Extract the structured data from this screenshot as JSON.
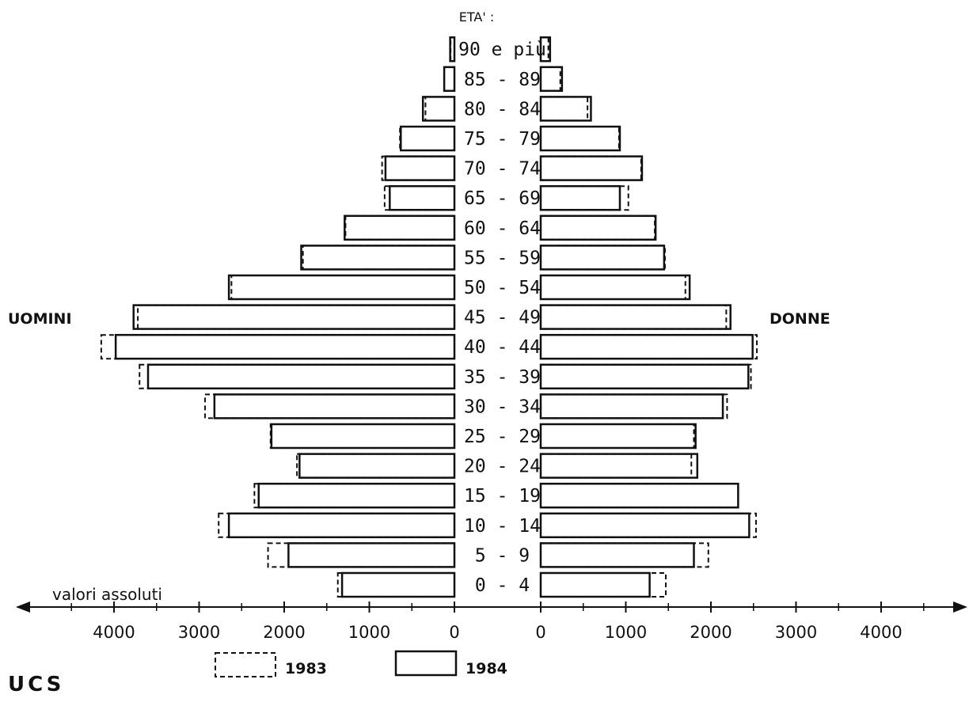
{
  "chart_data": {
    "type": "bar",
    "subtype": "population-pyramid",
    "title": "ETA' :",
    "age_groups": [
      "0-4",
      "5-9",
      "10-14",
      "15-19",
      "20-24",
      "25-29",
      "30-34",
      "35-39",
      "40-44",
      "45-49",
      "50-54",
      "55-59",
      "60-64",
      "65-69",
      "70-74",
      "75-79",
      "80-84",
      "85-89",
      "90 e più"
    ],
    "age_labels": [
      "0 - 4",
      "5 - 9",
      "10 - 14",
      "15 - 19",
      "20 - 24",
      "25 - 29",
      "30 - 34",
      "35 - 39",
      "40 - 44",
      "45 - 49",
      "50 - 54",
      "55 - 59",
      "60 - 64",
      "65 - 69",
      "70 - 74",
      "75 - 79",
      "80 - 84",
      "85 - 89",
      "90 e più"
    ],
    "left_label": "UOMINI",
    "right_label": "DONNE",
    "axis_caption": "valori assoluti",
    "xlim": [
      0,
      4500
    ],
    "left_ticks": [
      "4000",
      "3000",
      "2000",
      "1000",
      "0"
    ],
    "left_tick_values": [
      4000,
      3000,
      2000,
      1000,
      0
    ],
    "right_ticks": [
      "0",
      "1000",
      "2000",
      "3000",
      "4000"
    ],
    "right_tick_values": [
      0,
      1000,
      2000,
      3000,
      4000
    ],
    "series": [
      {
        "name": "1983",
        "style": "dashed",
        "men": [
          1370,
          2190,
          2770,
          2350,
          1850,
          2160,
          2930,
          3700,
          4150,
          3720,
          2620,
          1780,
          1280,
          820,
          850,
          640,
          340,
          120,
          45
        ],
        "women": [
          1470,
          1970,
          2530,
          2320,
          1770,
          1800,
          2190,
          2470,
          2540,
          2180,
          1700,
          1460,
          1340,
          1030,
          1180,
          920,
          550,
          230,
          90
        ]
      },
      {
        "name": "1984",
        "style": "solid",
        "men": [
          1320,
          1950,
          2650,
          2300,
          1820,
          2150,
          2820,
          3600,
          3980,
          3770,
          2650,
          1800,
          1290,
          760,
          810,
          630,
          370,
          120,
          50
        ],
        "women": [
          1280,
          1800,
          2450,
          2320,
          1840,
          1820,
          2140,
          2440,
          2490,
          2230,
          1750,
          1450,
          1350,
          930,
          1190,
          930,
          590,
          250,
          110
        ]
      }
    ],
    "legend": [
      {
        "label": "1983",
        "style": "dashed"
      },
      {
        "label": "1984",
        "style": "solid"
      }
    ],
    "legend_placement": "bottom-center",
    "grid": false
  },
  "footer": {
    "ucs": "UCS"
  }
}
